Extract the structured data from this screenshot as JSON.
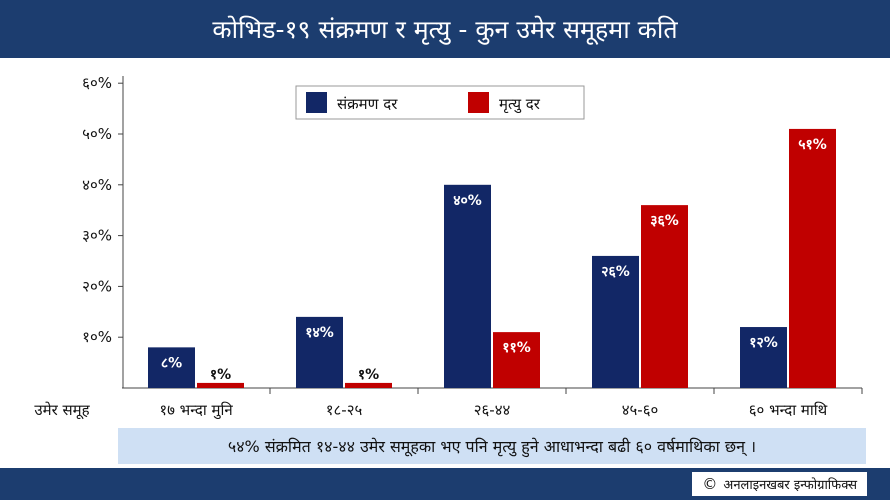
{
  "header": {
    "title": "कोभिड-१९ संक्रमण र मृत्यु - कुन उमेर समूहमा कति"
  },
  "chart_data": {
    "type": "bar",
    "categories": [
      "१७ भन्दा मुनि",
      "१८-२५",
      "२६-४४",
      "४५-६०",
      "६० भन्दा माथि"
    ],
    "series": [
      {
        "name": "संक्रमण दर",
        "color": "#122766",
        "values": [
          8,
          14,
          40,
          26,
          12
        ],
        "labels": [
          "८%",
          "१४%",
          "४०%",
          "२६%",
          "१२%"
        ]
      },
      {
        "name": "मृत्यु दर",
        "color": "#c00000",
        "values": [
          1,
          1,
          11,
          36,
          51
        ],
        "labels": [
          "१%",
          "१%",
          "११%",
          "३६%",
          "५१%"
        ]
      }
    ],
    "ylim": [
      0,
      60
    ],
    "yticks": [
      10,
      20,
      30,
      40,
      50,
      60
    ],
    "ytick_labels": [
      "१०%",
      "२०%",
      "३०%",
      "४०%",
      "५०%",
      "६०%"
    ],
    "xlabel": "उमेर समूह",
    "legend_position": "top-center",
    "grid": false
  },
  "footnote": "५४% संक्रमित १४-४४ उमेर समूहका भए पनि मृत्यु हुने आधाभन्दा बढी ६० वर्षमाथिका छन् ।",
  "credit": {
    "symbol": "©",
    "text": "अनलाइनखबर इन्फोग्राफिक्स"
  },
  "colors": {
    "header_bg": "#1c3d6f",
    "footnote_bg": "#cfe0f4"
  }
}
